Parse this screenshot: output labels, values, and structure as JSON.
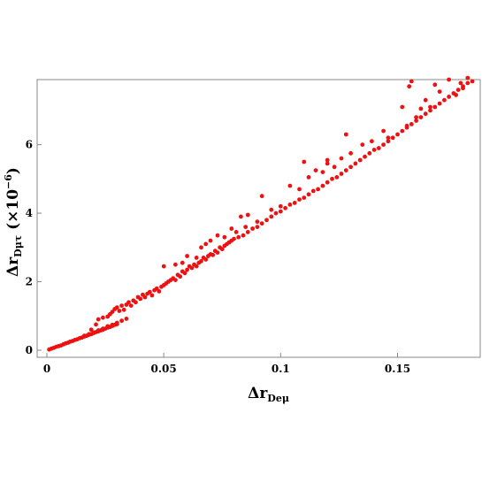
{
  "chart_data": {
    "type": "scatter",
    "xlabel": {
      "main": "Δr",
      "sub": "Deμ"
    },
    "ylabel": {
      "main": "Δr",
      "sub": "Dμτ",
      "suffix": " (×10",
      "exp": "−6",
      "close": ")"
    },
    "xlim": [
      0,
      0.185
    ],
    "ylim": [
      0,
      7.9
    ],
    "xticks": [
      {
        "value": 0,
        "label": "0"
      },
      {
        "value": 0.05,
        "label": "0.05"
      },
      {
        "value": 0.1,
        "label": "0.1"
      },
      {
        "value": 0.15,
        "label": "0.15"
      }
    ],
    "yticks": [
      {
        "value": 0,
        "label": "0"
      },
      {
        "value": 2,
        "label": "2"
      },
      {
        "value": 4,
        "label": "4"
      },
      {
        "value": 6,
        "label": "6"
      }
    ],
    "grid": false,
    "marker_color": "#ee1111",
    "series": [
      {
        "points": [
          [
            0.001,
            0.02
          ],
          [
            0.002,
            0.05
          ],
          [
            0.003,
            0.07
          ],
          [
            0.004,
            0.1
          ],
          [
            0.005,
            0.12
          ],
          [
            0.006,
            0.14
          ],
          [
            0.007,
            0.17
          ],
          [
            0.008,
            0.2
          ],
          [
            0.009,
            0.22
          ],
          [
            0.01,
            0.25
          ],
          [
            0.011,
            0.27
          ],
          [
            0.012,
            0.3
          ],
          [
            0.013,
            0.32
          ],
          [
            0.014,
            0.35
          ],
          [
            0.015,
            0.37
          ],
          [
            0.016,
            0.4
          ],
          [
            0.017,
            0.42
          ],
          [
            0.018,
            0.45
          ],
          [
            0.019,
            0.47
          ],
          [
            0.02,
            0.5
          ],
          [
            0.021,
            0.53
          ],
          [
            0.022,
            0.55
          ],
          [
            0.023,
            0.58
          ],
          [
            0.024,
            0.6
          ],
          [
            0.025,
            0.63
          ],
          [
            0.026,
            0.66
          ],
          [
            0.027,
            0.68
          ],
          [
            0.028,
            0.71
          ],
          [
            0.029,
            0.74
          ],
          [
            0.03,
            0.76
          ],
          [
            0.016,
            0.42
          ],
          [
            0.018,
            0.47
          ],
          [
            0.02,
            0.52
          ],
          [
            0.022,
            0.58
          ],
          [
            0.024,
            0.63
          ],
          [
            0.026,
            0.7
          ],
          [
            0.028,
            0.74
          ],
          [
            0.03,
            0.8
          ],
          [
            0.032,
            0.86
          ],
          [
            0.034,
            0.92
          ],
          [
            0.019,
            0.6
          ],
          [
            0.021,
            0.75
          ],
          [
            0.022,
            0.9
          ],
          [
            0.024,
            0.95
          ],
          [
            0.026,
            0.98
          ],
          [
            0.027,
            1.05
          ],
          [
            0.028,
            1.12
          ],
          [
            0.029,
            1.2
          ],
          [
            0.03,
            1.25
          ],
          [
            0.031,
            1.15
          ],
          [
            0.032,
            1.3
          ],
          [
            0.033,
            1.18
          ],
          [
            0.034,
            1.33
          ],
          [
            0.035,
            1.4
          ],
          [
            0.036,
            1.3
          ],
          [
            0.037,
            1.45
          ],
          [
            0.038,
            1.4
          ],
          [
            0.039,
            1.55
          ],
          [
            0.04,
            1.5
          ],
          [
            0.041,
            1.62
          ],
          [
            0.042,
            1.55
          ],
          [
            0.043,
            1.65
          ],
          [
            0.044,
            1.7
          ],
          [
            0.045,
            1.6
          ],
          [
            0.046,
            1.75
          ],
          [
            0.047,
            1.8
          ],
          [
            0.048,
            1.72
          ],
          [
            0.049,
            1.85
          ],
          [
            0.05,
            1.9
          ],
          [
            0.051,
            1.95
          ],
          [
            0.052,
            2.0
          ],
          [
            0.053,
            2.05
          ],
          [
            0.054,
            2.1
          ],
          [
            0.055,
            2.05
          ],
          [
            0.056,
            2.2
          ],
          [
            0.057,
            2.15
          ],
          [
            0.058,
            2.3
          ],
          [
            0.059,
            2.25
          ],
          [
            0.06,
            2.35
          ],
          [
            0.061,
            2.45
          ],
          [
            0.062,
            2.4
          ],
          [
            0.063,
            2.5
          ],
          [
            0.064,
            2.45
          ],
          [
            0.065,
            2.55
          ],
          [
            0.066,
            2.6
          ],
          [
            0.067,
            2.7
          ],
          [
            0.068,
            2.65
          ],
          [
            0.069,
            2.75
          ],
          [
            0.07,
            2.8
          ],
          [
            0.071,
            2.78
          ],
          [
            0.072,
            2.9
          ],
          [
            0.073,
            2.85
          ],
          [
            0.074,
            3.0
          ],
          [
            0.075,
            2.95
          ],
          [
            0.076,
            3.05
          ],
          [
            0.077,
            3.1
          ],
          [
            0.078,
            3.15
          ],
          [
            0.079,
            3.2
          ],
          [
            0.08,
            3.25
          ],
          [
            0.082,
            3.3
          ],
          [
            0.084,
            3.35
          ],
          [
            0.086,
            3.45
          ],
          [
            0.088,
            3.55
          ],
          [
            0.09,
            3.6
          ],
          [
            0.092,
            3.7
          ],
          [
            0.094,
            3.8
          ],
          [
            0.096,
            3.9
          ],
          [
            0.098,
            4.0
          ],
          [
            0.1,
            4.05
          ],
          [
            0.102,
            4.15
          ],
          [
            0.104,
            4.25
          ],
          [
            0.106,
            4.3
          ],
          [
            0.108,
            4.4
          ],
          [
            0.11,
            4.45
          ],
          [
            0.112,
            4.55
          ],
          [
            0.114,
            4.65
          ],
          [
            0.116,
            4.7
          ],
          [
            0.118,
            4.8
          ],
          [
            0.12,
            4.9
          ],
          [
            0.122,
            5.0
          ],
          [
            0.124,
            5.05
          ],
          [
            0.126,
            5.15
          ],
          [
            0.128,
            5.25
          ],
          [
            0.13,
            5.35
          ],
          [
            0.132,
            5.45
          ],
          [
            0.134,
            5.55
          ],
          [
            0.136,
            5.65
          ],
          [
            0.138,
            5.75
          ],
          [
            0.14,
            5.85
          ],
          [
            0.142,
            5.9
          ],
          [
            0.144,
            6.0
          ],
          [
            0.146,
            6.1
          ],
          [
            0.148,
            6.2
          ],
          [
            0.15,
            6.3
          ],
          [
            0.152,
            6.4
          ],
          [
            0.154,
            6.5
          ],
          [
            0.156,
            6.6
          ],
          [
            0.158,
            6.7
          ],
          [
            0.16,
            6.8
          ],
          [
            0.162,
            6.9
          ],
          [
            0.164,
            7.0
          ],
          [
            0.166,
            7.1
          ],
          [
            0.168,
            7.2
          ],
          [
            0.17,
            7.3
          ],
          [
            0.172,
            7.4
          ],
          [
            0.174,
            7.5
          ],
          [
            0.176,
            7.6
          ],
          [
            0.178,
            7.7
          ],
          [
            0.18,
            7.8
          ],
          [
            0.182,
            7.85
          ],
          [
            0.05,
            2.45
          ],
          [
            0.055,
            2.5
          ],
          [
            0.058,
            2.55
          ],
          [
            0.06,
            2.75
          ],
          [
            0.064,
            2.7
          ],
          [
            0.066,
            3.0
          ],
          [
            0.068,
            3.1
          ],
          [
            0.07,
            3.2
          ],
          [
            0.073,
            3.35
          ],
          [
            0.076,
            3.3
          ],
          [
            0.079,
            3.55
          ],
          [
            0.083,
            3.9
          ],
          [
            0.086,
            3.95
          ],
          [
            0.092,
            4.5
          ],
          [
            0.104,
            4.8
          ],
          [
            0.108,
            4.7
          ],
          [
            0.112,
            5.05
          ],
          [
            0.115,
            5.25
          ],
          [
            0.118,
            5.2
          ],
          [
            0.12,
            5.45
          ],
          [
            0.123,
            5.35
          ],
          [
            0.126,
            5.6
          ],
          [
            0.13,
            5.75
          ],
          [
            0.135,
            6.0
          ],
          [
            0.139,
            6.1
          ],
          [
            0.144,
            6.4
          ],
          [
            0.146,
            6.2
          ],
          [
            0.152,
            7.1
          ],
          [
            0.154,
            6.55
          ],
          [
            0.155,
            7.7
          ],
          [
            0.156,
            7.85
          ],
          [
            0.158,
            6.8
          ],
          [
            0.16,
            7.05
          ],
          [
            0.162,
            7.3
          ],
          [
            0.164,
            7.1
          ],
          [
            0.166,
            7.75
          ],
          [
            0.168,
            7.55
          ],
          [
            0.172,
            7.9
          ],
          [
            0.175,
            7.45
          ],
          [
            0.177,
            7.8
          ],
          [
            0.178,
            7.65
          ],
          [
            0.18,
            7.95
          ],
          [
            0.128,
            6.3
          ],
          [
            0.11,
            5.5
          ],
          [
            0.12,
            5.55
          ],
          [
            0.1,
            4.2
          ],
          [
            0.096,
            4.1
          ],
          [
            0.09,
            3.75
          ],
          [
            0.085,
            3.6
          ],
          [
            0.081,
            3.45
          ]
        ]
      }
    ]
  }
}
